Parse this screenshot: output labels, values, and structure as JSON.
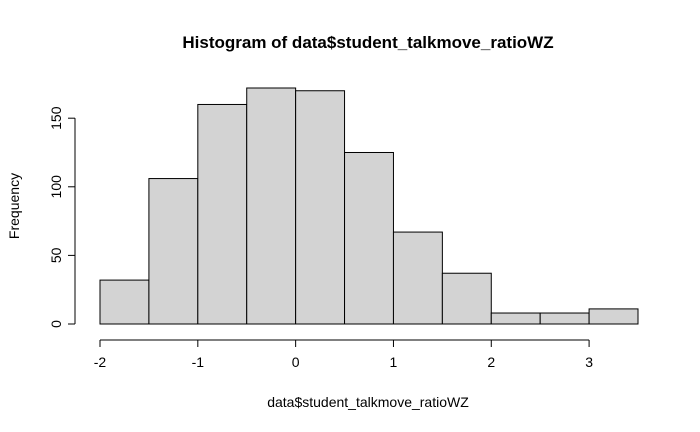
{
  "chart_data": {
    "type": "bar",
    "title": "Histogram of data$student_talkmove_ratioWZ",
    "xlabel": "data$student_talkmove_ratioWZ",
    "ylabel": "Frequency",
    "bins": [
      {
        "x0": -2.0,
        "x1": -1.5,
        "count": 32
      },
      {
        "x0": -1.5,
        "x1": -1.0,
        "count": 106
      },
      {
        "x0": -1.0,
        "x1": -0.5,
        "count": 160
      },
      {
        "x0": -0.5,
        "x1": 0.0,
        "count": 172
      },
      {
        "x0": 0.0,
        "x1": 0.5,
        "count": 170
      },
      {
        "x0": 0.5,
        "x1": 1.0,
        "count": 125
      },
      {
        "x0": 1.0,
        "x1": 1.5,
        "count": 67
      },
      {
        "x0": 1.5,
        "x1": 2.0,
        "count": 37
      },
      {
        "x0": 2.0,
        "x1": 2.5,
        "count": 8
      },
      {
        "x0": 2.5,
        "x1": 3.0,
        "count": 8
      },
      {
        "x0": 3.0,
        "x1": 3.5,
        "count": 11
      }
    ],
    "xlim": [
      -2,
      3.5
    ],
    "ylim": [
      0,
      172
    ],
    "xticks": [
      -2,
      -1,
      0,
      1,
      2,
      3
    ],
    "xtick_labels": [
      "-2",
      "-1",
      "0",
      "1",
      "2",
      "3"
    ],
    "yticks": [
      0,
      50,
      100,
      150
    ],
    "ytick_labels": [
      "0",
      "50",
      "100",
      "150"
    ],
    "grid": false,
    "colors": {
      "bar_fill": "#d3d3d3",
      "bar_stroke": "#000000"
    }
  }
}
